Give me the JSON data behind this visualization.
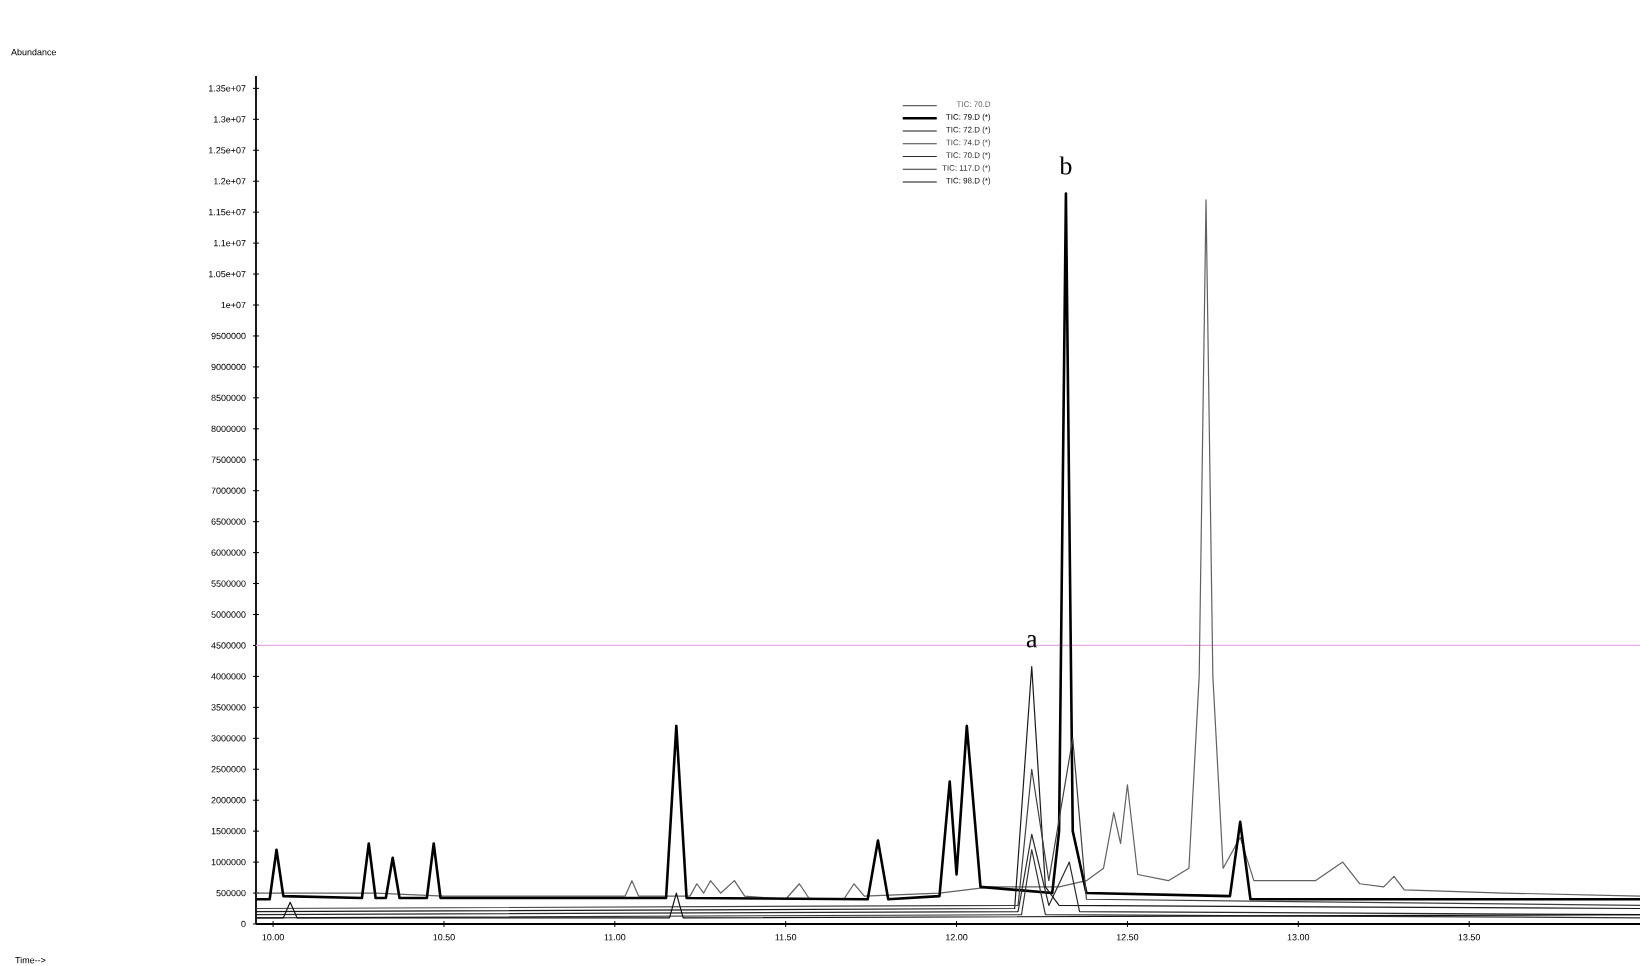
{
  "chart_data": {
    "type": "line",
    "xlim": [
      9.95,
      14.0
    ],
    "ylim": [
      0,
      13700000
    ],
    "xticks": [
      {
        "value": 10,
        "label": "10.00"
      },
      {
        "value": 10.5,
        "label": "10.50"
      },
      {
        "value": 11,
        "label": "11.00"
      },
      {
        "value": 11.5,
        "label": "11.50"
      },
      {
        "value": 12,
        "label": "12.00"
      },
      {
        "value": 12.5,
        "label": "12.50"
      },
      {
        "value": 13,
        "label": "13.00"
      },
      {
        "value": 13.5,
        "label": "13.50"
      }
    ],
    "yticks": [
      0,
      500000,
      1000000,
      1500000,
      2000000,
      2500000,
      3000000,
      3500000,
      4000000,
      4500000,
      5000000,
      5500000,
      6000000,
      6500000,
      7000000,
      7500000,
      8000000,
      8500000,
      9000000,
      9500000,
      {
        "value": 10000000,
        "label": "1e+07"
      },
      {
        "value": 10500000,
        "label": "1.05e+07"
      },
      {
        "value": 11000000,
        "label": "1.1e+07"
      },
      {
        "value": 11500000,
        "label": "1.15e+07"
      },
      {
        "value": 12000000,
        "label": "1.2e+07"
      },
      {
        "value": 12500000,
        "label": "1.25e+07"
      },
      {
        "value": 13000000,
        "label": "1.3e+07"
      },
      {
        "value": 13500000,
        "label": "1.35e+07"
      }
    ],
    "marker": "none",
    "line_style": "solid",
    "legend": "top",
    "ref_lines": [
      {
        "axis": "y",
        "value": 4500000,
        "color": "#e8a8e8"
      }
    ],
    "annotations": [
      "Abundance",
      "Time-->",
      {
        "text": "a",
        "x": 12.22,
        "y": 4160000
      },
      {
        "text": "b",
        "x": 12.32,
        "y": 11800000
      }
    ],
    "series": [
      {
        "name": "TIC: 70.D",
        "color": "#606060",
        "x": [
          9.95,
          10.3,
          10.5,
          11.0,
          11.03,
          11.05,
          11.07,
          11.22,
          11.24,
          11.26,
          11.28,
          11.31,
          11.35,
          11.38,
          11.5,
          11.54,
          11.57,
          11.67,
          11.7,
          11.73,
          11.95,
          12.1,
          12.3,
          12.38,
          12.43,
          12.46,
          12.48,
          12.5,
          12.53,
          12.62,
          12.68,
          12.71,
          12.73,
          12.75,
          12.78,
          12.83,
          12.87,
          13.05,
          13.13,
          13.18,
          13.25,
          13.28,
          13.31,
          13.6,
          14.0
        ],
        "values": [
          500000,
          500000,
          450000,
          450000,
          450000,
          700000,
          450000,
          450000,
          650000,
          500000,
          700000,
          500000,
          700000,
          450000,
          400000,
          650000,
          400000,
          400000,
          650000,
          450000,
          500000,
          600000,
          600000,
          700000,
          900000,
          1800000,
          1300000,
          2250000,
          800000,
          700000,
          900000,
          4000000,
          11700000,
          4000000,
          900000,
          1400000,
          700000,
          700000,
          1000000,
          650000,
          600000,
          770000,
          550000,
          500000,
          450000
        ]
      },
      {
        "name": "TIC: 79.D (*)",
        "color": "#000000",
        "x": [
          9.95,
          9.99,
          10.01,
          10.03,
          10.26,
          10.28,
          10.3,
          10.33,
          10.35,
          10.37,
          10.45,
          10.47,
          10.49,
          11.15,
          11.18,
          11.21,
          11.74,
          11.77,
          11.8,
          11.95,
          11.98,
          12.0,
          12.03,
          12.07,
          12.28,
          12.3,
          12.32,
          12.34,
          12.38,
          12.8,
          12.83,
          12.86,
          14.0
        ],
        "values": [
          400000,
          400000,
          1200000,
          450000,
          420000,
          1300000,
          420000,
          420000,
          1070000,
          420000,
          420000,
          1300000,
          420000,
          420000,
          3200000,
          420000,
          400000,
          1350000,
          400000,
          450000,
          2300000,
          800000,
          3200000,
          600000,
          500000,
          1500000,
          11800000,
          1500000,
          500000,
          450000,
          1650000,
          400000,
          400000
        ]
      },
      {
        "name": "TIC: 72.D (*)",
        "color": "#1a1a1a",
        "x": [
          9.95,
          12.17,
          12.22,
          12.26,
          12.3,
          14.0
        ],
        "values": [
          200000,
          250000,
          4160000,
          600000,
          300000,
          250000
        ]
      },
      {
        "name": "TIC: 74.D (*)",
        "color": "#404040",
        "x": [
          9.95,
          12.18,
          12.22,
          12.27,
          12.34,
          12.38,
          14.0
        ],
        "values": [
          250000,
          300000,
          2500000,
          700000,
          3000000,
          400000,
          300000
        ]
      },
      {
        "name": "TIC: 70.D (*)",
        "color": "#2a2a2a",
        "x": [
          9.95,
          12.18,
          12.22,
          12.27,
          12.33,
          12.36,
          14.0
        ],
        "values": [
          150000,
          200000,
          1450000,
          300000,
          1000000,
          200000,
          150000
        ]
      },
      {
        "name": "TIC: 117.D (*)",
        "color": "#333333",
        "x": [
          9.95,
          12.19,
          12.22,
          12.26,
          14.0
        ],
        "values": [
          100000,
          150000,
          1200000,
          150000,
          100000
        ]
      },
      {
        "name": "TIC: 98.D (*)",
        "color": "#111111",
        "x": [
          9.95,
          10.03,
          10.05,
          10.07,
          11.16,
          11.18,
          11.2,
          14.0
        ],
        "values": [
          100000,
          100000,
          350000,
          100000,
          100000,
          500000,
          100000,
          150000
        ]
      }
    ]
  }
}
